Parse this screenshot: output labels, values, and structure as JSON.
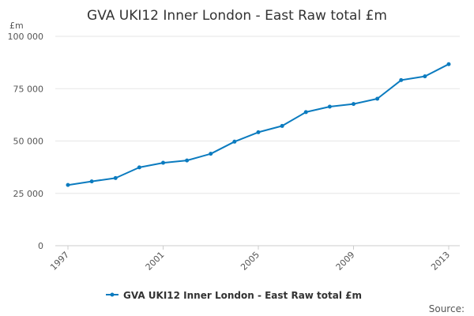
{
  "chart_data": {
    "type": "line",
    "title": "GVA UKI12 Inner London - East Raw total £m",
    "ylabel": "£m",
    "xlabel": "",
    "x": [
      1997,
      1998,
      1999,
      2000,
      2001,
      2002,
      2003,
      2004,
      2005,
      2006,
      2007,
      2008,
      2009,
      2010,
      2011,
      2012,
      2013
    ],
    "x_tick_labels": [
      "1997",
      "2001",
      "2005",
      "2009",
      "2013"
    ],
    "x_tick_values": [
      1997,
      2001,
      2005,
      2009,
      2013
    ],
    "xlim": [
      1997,
      2013
    ],
    "ylim": [
      0,
      100000
    ],
    "y_ticks": [
      0,
      25000,
      50000,
      75000,
      100000
    ],
    "y_tick_labels": [
      "0",
      "25 000",
      "50 000",
      "75 000",
      "100 000"
    ],
    "grid": true,
    "legend_position": "bottom",
    "series": [
      {
        "name": "GVA UKI12 Inner London - East Raw total £m",
        "color": "#0b7bbf",
        "values": [
          29000,
          30700,
          32300,
          37400,
          39600,
          40700,
          43900,
          49700,
          54200,
          57200,
          63800,
          66400,
          67700,
          70200,
          79100,
          80900,
          86700
        ]
      }
    ],
    "source_label": "Source:"
  }
}
